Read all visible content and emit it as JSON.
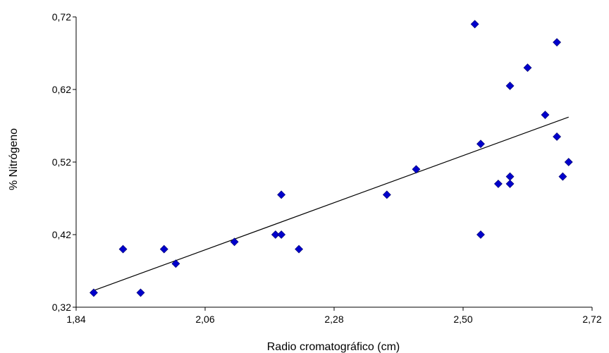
{
  "chart_data": {
    "type": "scatter",
    "title": "",
    "xlabel": "Radio cromatográfico (cm)",
    "ylabel": "% Nitrógeno",
    "xlim": [
      1.84,
      2.72
    ],
    "ylim": [
      0.32,
      0.72
    ],
    "x_ticks": [
      "1,84",
      "2,06",
      "2,28",
      "2,50",
      "2,72"
    ],
    "y_ticks": [
      "0,32",
      "0,42",
      "0,52",
      "0,62",
      "0,72"
    ],
    "grid": false,
    "legend": "none",
    "series": [
      {
        "x": [
          1.87,
          1.92,
          1.95,
          1.99,
          2.01,
          2.11,
          2.18,
          2.19,
          2.19,
          2.22,
          2.37,
          2.42,
          2.52,
          2.53,
          2.53,
          2.56,
          2.58,
          2.58,
          2.58,
          2.61,
          2.64,
          2.66,
          2.66,
          2.67,
          2.68
        ],
        "y": [
          0.34,
          0.4,
          0.34,
          0.4,
          0.38,
          0.41,
          0.42,
          0.42,
          0.475,
          0.4,
          0.475,
          0.51,
          0.71,
          0.545,
          0.42,
          0.49,
          0.5,
          0.49,
          0.625,
          0.65,
          0.585,
          0.555,
          0.685,
          0.5,
          0.52
        ],
        "color": "#0000cc"
      }
    ],
    "trendline": {
      "x": [
        1.87,
        2.68
      ],
      "y": [
        0.343,
        0.582
      ],
      "color": "#000000"
    }
  }
}
